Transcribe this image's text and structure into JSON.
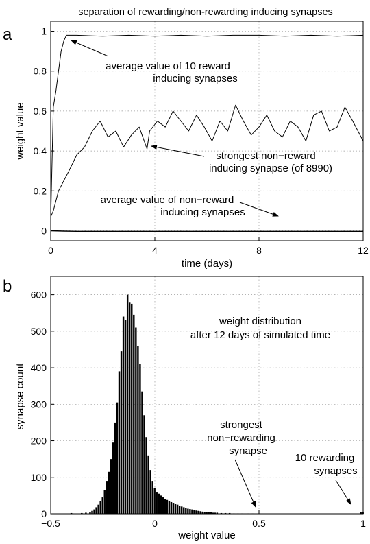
{
  "panel_a_label": "a",
  "panel_b_label": "b",
  "chart_data": [
    {
      "type": "line",
      "title": "separation of rewarding/non-rewarding inducing synapses",
      "xlabel": "time (days)",
      "ylabel": "weight value",
      "xlim": [
        0,
        12
      ],
      "ylim": [
        -0.05,
        1.05
      ],
      "xticks": [
        "0",
        "4",
        "8",
        "12"
      ],
      "yticks": [
        "0",
        "0.2",
        "0.4",
        "0.6",
        "0.8",
        "1"
      ],
      "grid": true,
      "series": [
        {
          "x": [
            0,
            0.1,
            0.2,
            0.3,
            0.4,
            0.5,
            0.6,
            0.8,
            1,
            2,
            3,
            4,
            5,
            6,
            7,
            8,
            9,
            10,
            11,
            12
          ],
          "y": [
            0.05,
            0.62,
            0.7,
            0.8,
            0.9,
            0.95,
            0.98,
            0.98,
            0.98,
            0.975,
            0.98,
            0.975,
            0.98,
            0.975,
            0.98,
            0.98,
            0.975,
            0.98,
            0.975,
            0.98
          ]
        },
        {
          "x": [
            0,
            0.1,
            0.3,
            0.5,
            0.7,
            1.0,
            1.3,
            1.6,
            1.9,
            2.2,
            2.5,
            2.8,
            3.1,
            3.4,
            3.7,
            3.8,
            4.1,
            4.4,
            4.7,
            5.0,
            5.3,
            5.6,
            5.9,
            6.2,
            6.5,
            6.8,
            7.1,
            7.4,
            7.7,
            8.0,
            8.3,
            8.6,
            8.9,
            9.2,
            9.5,
            9.8,
            10.1,
            10.4,
            10.7,
            11.0,
            11.3,
            11.6,
            12.0
          ],
          "y": [
            0.07,
            0.1,
            0.2,
            0.25,
            0.3,
            0.38,
            0.42,
            0.5,
            0.55,
            0.47,
            0.5,
            0.42,
            0.48,
            0.52,
            0.41,
            0.5,
            0.55,
            0.52,
            0.6,
            0.55,
            0.5,
            0.58,
            0.52,
            0.45,
            0.55,
            0.5,
            0.63,
            0.55,
            0.48,
            0.52,
            0.58,
            0.5,
            0.47,
            0.55,
            0.52,
            0.45,
            0.58,
            0.6,
            0.5,
            0.52,
            0.62,
            0.55,
            0.45
          ]
        },
        {
          "x": [
            0,
            0.5,
            1,
            2,
            4,
            6,
            8,
            10,
            12
          ],
          "y": [
            0.0,
            -0.002,
            -0.003,
            -0.003,
            -0.003,
            -0.003,
            -0.003,
            -0.003,
            -0.003
          ]
        }
      ],
      "annotations": [
        {
          "lines": [
            "average value of 10 reward",
            "inducing synapses"
          ]
        },
        {
          "lines": [
            "strongest non−reward",
            "inducing synapse (of 8990)"
          ]
        },
        {
          "lines": [
            "average value of non−reward",
            "inducing synapses"
          ]
        }
      ]
    },
    {
      "type": "bar",
      "title": "weight distribution",
      "subtitle": "after 12 days of simulated time",
      "xlabel": "weight value",
      "ylabel": "synapse count",
      "xlim": [
        -0.5,
        1.0
      ],
      "ylim": [
        0,
        650
      ],
      "xticks": [
        "−0.5",
        "0",
        "0.5",
        "1"
      ],
      "yticks": [
        "0",
        "100",
        "200",
        "300",
        "400",
        "500",
        "600"
      ],
      "grid": true,
      "bin_width": 0.01,
      "bins": [
        [
          -0.4,
          2
        ],
        [
          -0.35,
          2
        ],
        [
          -0.33,
          3
        ],
        [
          -0.31,
          5
        ],
        [
          -0.3,
          8
        ],
        [
          -0.29,
          12
        ],
        [
          -0.28,
          18
        ],
        [
          -0.27,
          25
        ],
        [
          -0.26,
          35
        ],
        [
          -0.25,
          45
        ],
        [
          -0.24,
          65
        ],
        [
          -0.23,
          90
        ],
        [
          -0.22,
          115
        ],
        [
          -0.21,
          150
        ],
        [
          -0.2,
          195
        ],
        [
          -0.19,
          250
        ],
        [
          -0.18,
          305
        ],
        [
          -0.17,
          390
        ],
        [
          -0.16,
          445
        ],
        [
          -0.15,
          540
        ],
        [
          -0.14,
          530
        ],
        [
          -0.13,
          600
        ],
        [
          -0.12,
          580
        ],
        [
          -0.11,
          575
        ],
        [
          -0.1,
          545
        ],
        [
          -0.09,
          510
        ],
        [
          -0.08,
          460
        ],
        [
          -0.07,
          410
        ],
        [
          -0.06,
          335
        ],
        [
          -0.05,
          270
        ],
        [
          -0.04,
          210
        ],
        [
          -0.03,
          160
        ],
        [
          -0.02,
          120
        ],
        [
          -0.01,
          90
        ],
        [
          0.0,
          70
        ],
        [
          0.01,
          60
        ],
        [
          0.02,
          55
        ],
        [
          0.03,
          50
        ],
        [
          0.04,
          45
        ],
        [
          0.05,
          40
        ],
        [
          0.06,
          38
        ],
        [
          0.07,
          35
        ],
        [
          0.08,
          32
        ],
        [
          0.09,
          30
        ],
        [
          0.1,
          27
        ],
        [
          0.11,
          25
        ],
        [
          0.12,
          22
        ],
        [
          0.13,
          20
        ],
        [
          0.14,
          18
        ],
        [
          0.15,
          16
        ],
        [
          0.16,
          14
        ],
        [
          0.17,
          13
        ],
        [
          0.18,
          12
        ],
        [
          0.19,
          10
        ],
        [
          0.2,
          9
        ],
        [
          0.21,
          8
        ],
        [
          0.22,
          7
        ],
        [
          0.23,
          6
        ],
        [
          0.24,
          5
        ],
        [
          0.25,
          5
        ],
        [
          0.26,
          4
        ],
        [
          0.27,
          4
        ],
        [
          0.28,
          3
        ],
        [
          0.29,
          3
        ],
        [
          0.3,
          3
        ],
        [
          0.32,
          2
        ],
        [
          0.34,
          2
        ],
        [
          0.36,
          2
        ],
        [
          0.38,
          1
        ],
        [
          0.4,
          1
        ],
        [
          0.42,
          1
        ],
        [
          0.45,
          1
        ],
        [
          0.47,
          1
        ],
        [
          0.99,
          5
        ],
        [
          1.0,
          5
        ]
      ],
      "annotations": [
        {
          "lines": [
            "strongest",
            "non−rewarding",
            "synapse"
          ]
        },
        {
          "lines": [
            "10 rewarding",
            "synapses"
          ]
        }
      ]
    }
  ]
}
